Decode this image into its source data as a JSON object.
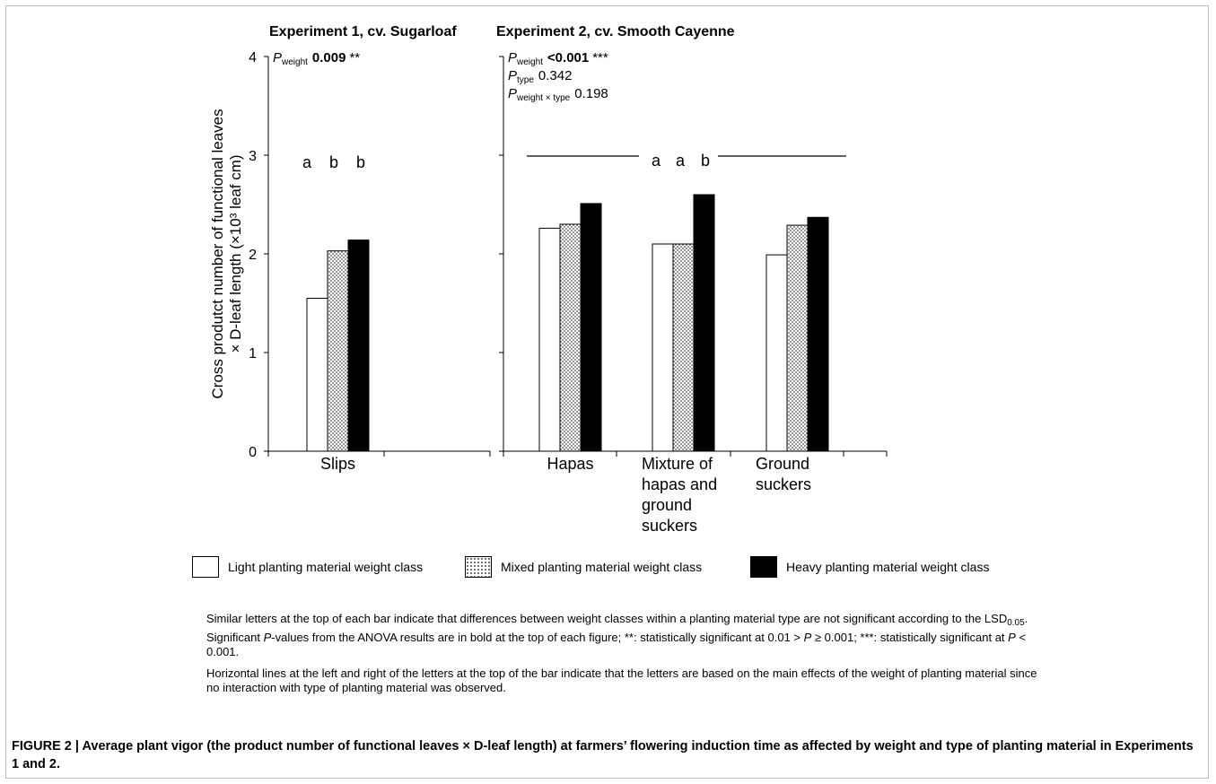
{
  "chart_data": [
    {
      "type": "bar",
      "title": "Experiment 1, cv. Sugarloaf",
      "categories": [
        "Slips"
      ],
      "series": [
        {
          "name": "Light planting material weight class",
          "values": [
            1.55
          ]
        },
        {
          "name": "Mixed planting material weight class",
          "values": [
            2.03
          ]
        },
        {
          "name": "Heavy planting material weight class",
          "values": [
            2.14
          ]
        }
      ],
      "ylabel": "Cross produtct number of functional leaves × D-leaf length (×10³ leaf cm)",
      "ylim": [
        0,
        4
      ],
      "yticks": [
        "0",
        "1",
        "2",
        "3",
        "4"
      ],
      "significance_letters": [
        "a",
        "b",
        "b"
      ],
      "p_values": [
        {
          "label": "weight",
          "value": "0.009",
          "stars": "**",
          "bold": true
        }
      ]
    },
    {
      "type": "bar",
      "title": "Experiment 2, cv. Smooth Cayenne",
      "categories": [
        "Hapas",
        "Mixture of hapas and ground suckers",
        "Ground suckers"
      ],
      "category_lines": [
        [
          "Hapas"
        ],
        [
          "Mixture of",
          "hapas and",
          "ground",
          "suckers"
        ],
        [
          "Ground",
          "suckers"
        ]
      ],
      "series": [
        {
          "name": "Light planting material weight class",
          "values": [
            2.26,
            2.1,
            1.99
          ]
        },
        {
          "name": "Mixed planting material weight class",
          "values": [
            2.3,
            2.1,
            2.29
          ]
        },
        {
          "name": "Heavy planting material weight class",
          "values": [
            2.51,
            2.6,
            2.37
          ]
        }
      ],
      "ylim": [
        0,
        4
      ],
      "significance_letters": [
        "a",
        "a",
        "b"
      ],
      "p_values": [
        {
          "label": "weight",
          "value": "<0.001",
          "stars": "***",
          "bold": true
        },
        {
          "label": "type",
          "value": "0.342",
          "stars": "",
          "bold": false
        },
        {
          "label": "weight × type",
          "value": "0.198",
          "stars": "",
          "bold": false
        }
      ]
    }
  ],
  "legend": [
    {
      "label": "Light planting material weight class",
      "fill": "white"
    },
    {
      "label": "Mixed planting material weight class",
      "fill": "dotted"
    },
    {
      "label": "Heavy planting material weight class",
      "fill": "black"
    }
  ],
  "notes": {
    "p1_a": "Similar letters at the top of each bar indicate that differences between weight classes within a planting material type are not significant according to the LSD",
    "p1_sub": "0.05",
    "p1_b": ". Significant ",
    "p1_p": "P",
    "p1_c": "-values from the ANOVA results are in bold at the top of each figure; **: statistically significant at 0.01 > ",
    "p1_p2": "P",
    "p1_d": " ≥ 0.001; ***: statistically significant at ",
    "p1_p3": "P",
    "p1_e": " < 0.001.",
    "p2": "Horizontal lines at the left and right of the letters at the top of the bar indicate that the letters are based on the main effects of the weight of planting material since no interaction with type of planting material was observed."
  },
  "caption": {
    "label": "FIGURE 2 | ",
    "text": "Average plant vigor (the product number of functional leaves × D-leaf length) at farmers’ flowering induction time as affected by weight and type of planting material in Experiments 1 and 2."
  },
  "colors": {
    "light_fill": "#ffffff",
    "mixed_fill": "#d0d0d0",
    "heavy_fill": "#000000"
  }
}
